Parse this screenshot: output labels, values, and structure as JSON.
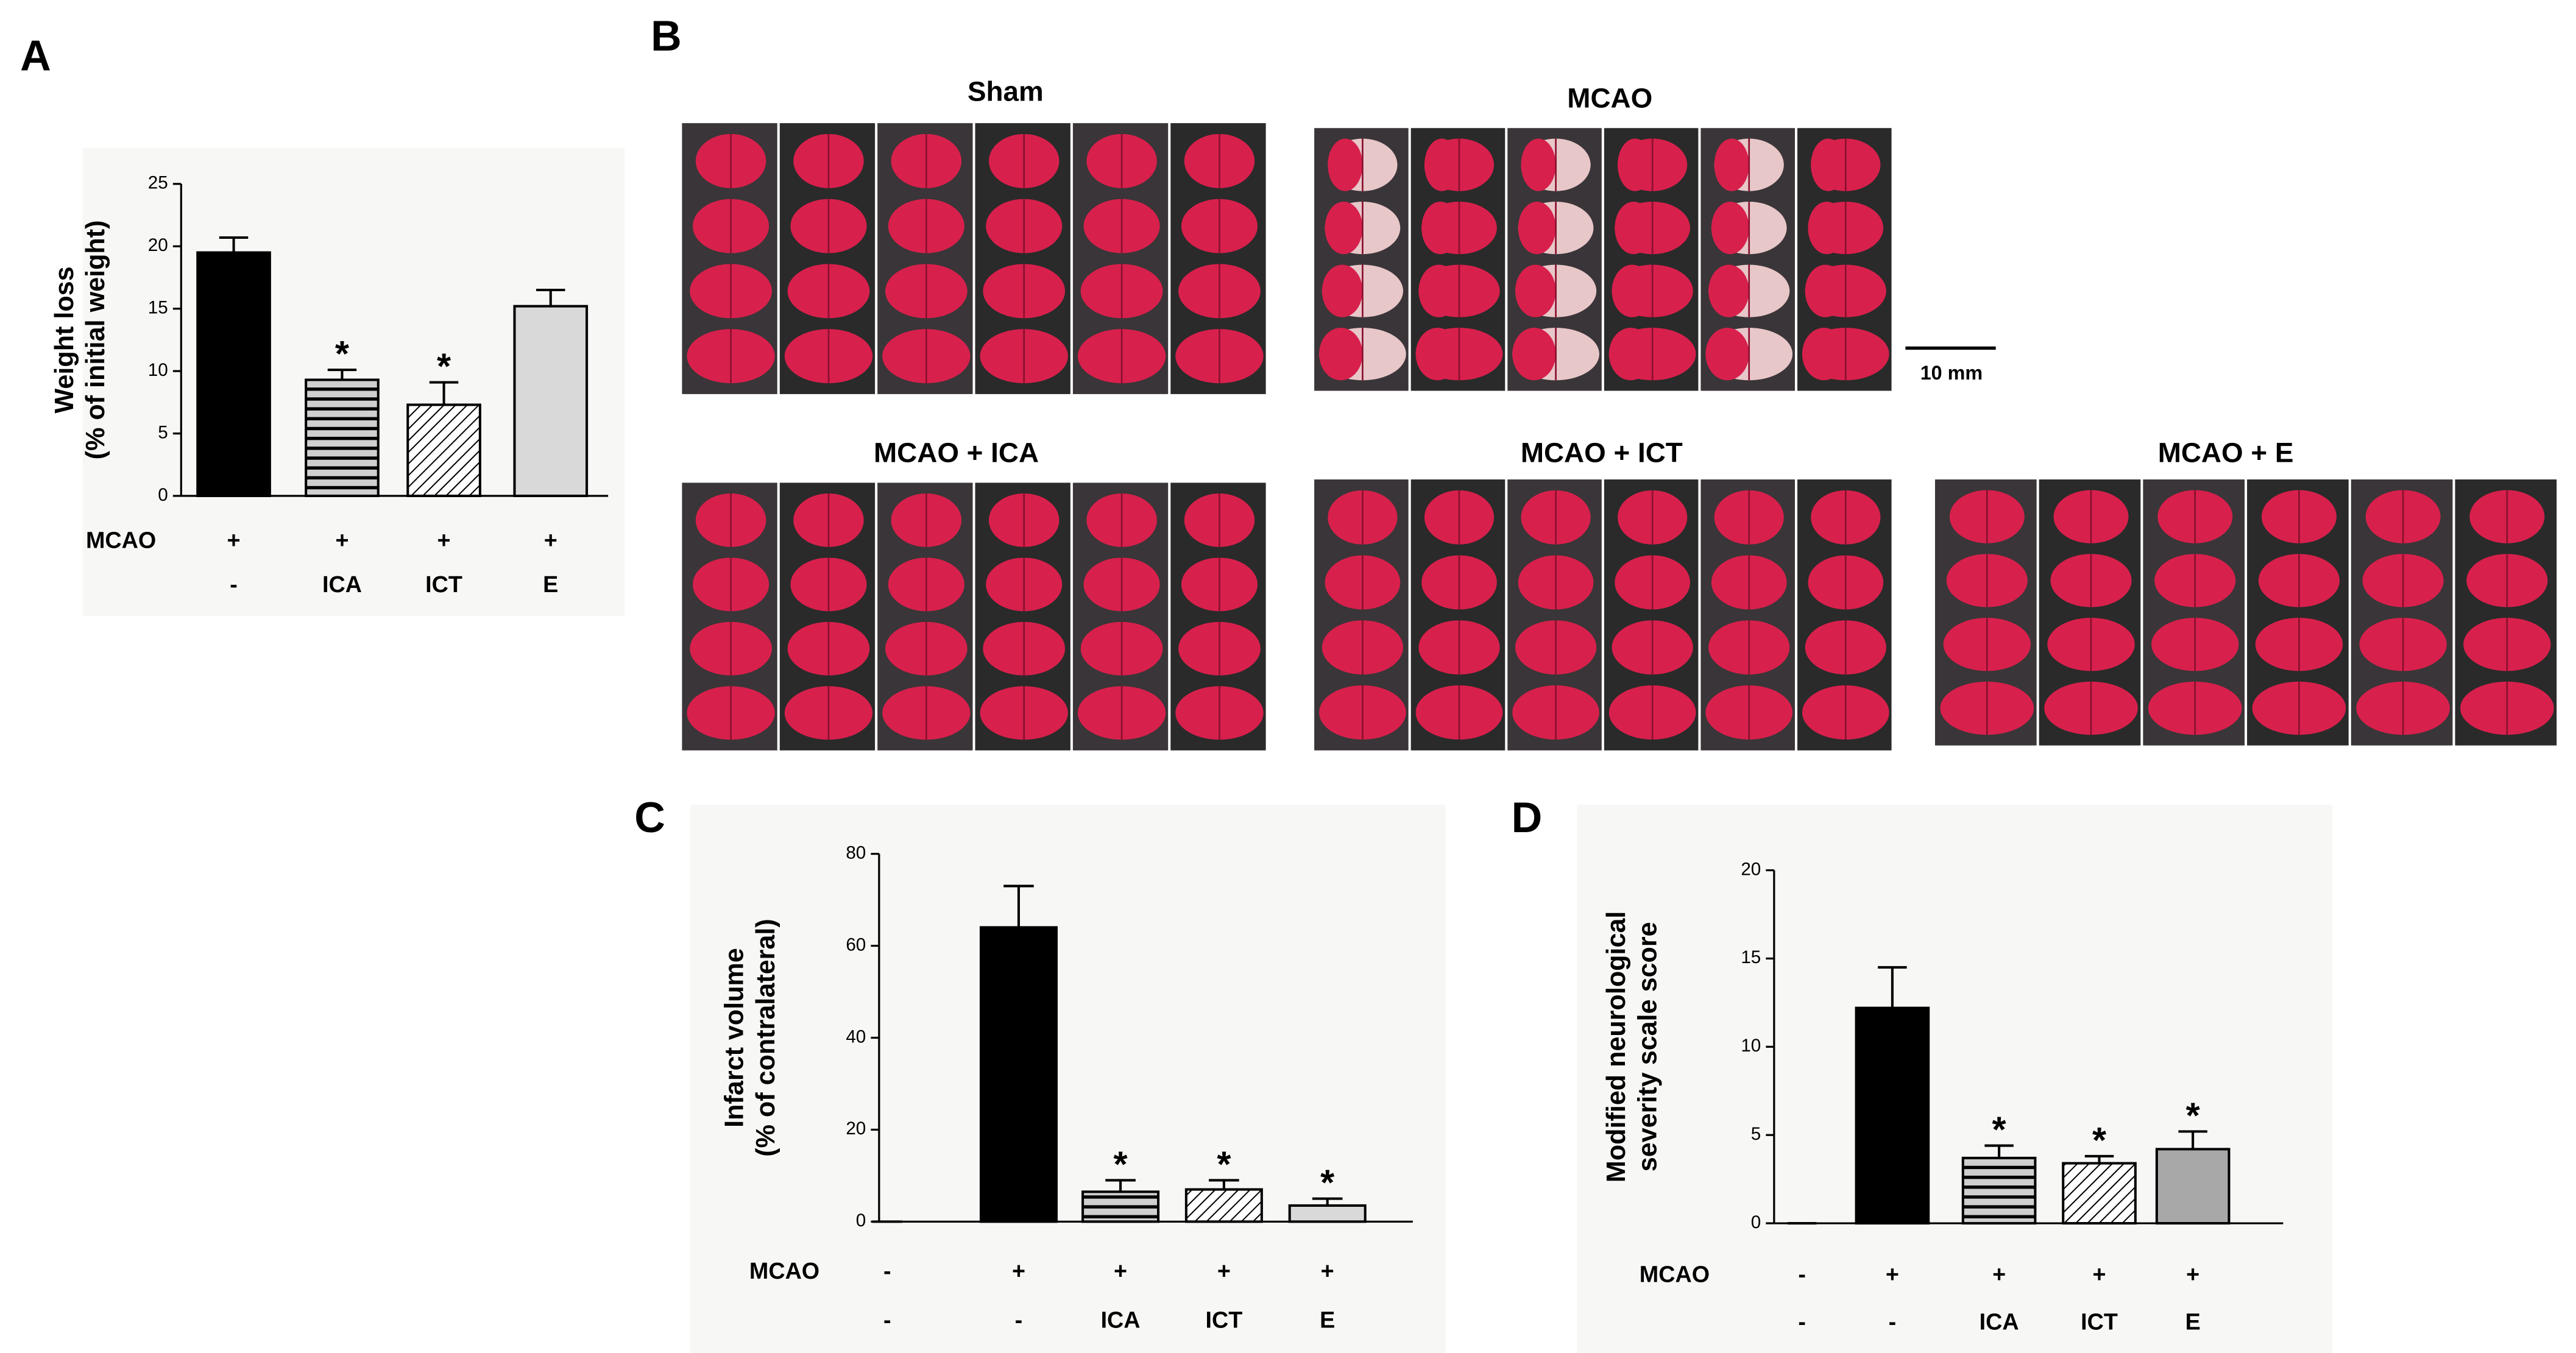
{
  "panel_labels": [
    "A",
    "B",
    "C",
    "D"
  ],
  "panel_b": {
    "groups": [
      "Sham",
      "MCAO",
      "MCAO + ICA",
      "MCAO + ICT",
      "MCAO + E"
    ],
    "scale_bar": "10 mm"
  },
  "chart_data": [
    {
      "type": "bar",
      "ylabel": [
        "Weight loss",
        "(% of initial weight)"
      ],
      "mcao_row": {
        "label": "MCAO",
        "values": [
          "+",
          "+",
          "+",
          "+"
        ]
      },
      "categories": [
        "-",
        "ICA",
        "ICT",
        "E"
      ],
      "values": [
        19.5,
        9.3,
        7.3,
        15.2
      ],
      "errors": [
        1.2,
        0.8,
        1.8,
        1.3
      ],
      "value_labels": [
        null,
        "*",
        "*",
        null
      ],
      "colors": [
        "#000000",
        "#cfcfcf",
        "#ffffff",
        "#d9d9d9"
      ],
      "patterns": [
        "solid",
        "horizontal",
        "diagonal",
        "solid"
      ],
      "ylim": [
        0,
        25
      ],
      "yticks": [
        0,
        5,
        10,
        15,
        20,
        25
      ]
    },
    {
      "type": "bar",
      "ylabel": [
        "Infarct volume",
        "(% of contralateral)"
      ],
      "mcao_row": {
        "label": "MCAO",
        "values": [
          "-",
          "+",
          "+",
          "+",
          "+"
        ]
      },
      "categories": [
        "-",
        "-",
        "ICA",
        "ICT",
        "E"
      ],
      "values": [
        0,
        64,
        6.5,
        7,
        3.5
      ],
      "errors": [
        0,
        9,
        2.5,
        2,
        1.5
      ],
      "value_labels": [
        null,
        null,
        "*",
        "*",
        "*"
      ],
      "colors": [
        "#000000",
        "#000000",
        "#cfcfcf",
        "#ffffff",
        "#d9d9d9"
      ],
      "patterns": [
        "solid",
        "solid",
        "horizontal",
        "diagonal",
        "solid"
      ],
      "ylim": [
        0,
        80
      ],
      "yticks": [
        0,
        20,
        40,
        60,
        80
      ]
    },
    {
      "type": "bar",
      "ylabel": [
        "Modified neurological",
        "severity scale score"
      ],
      "mcao_row": {
        "label": "MCAO",
        "values": [
          "-",
          "+",
          "+",
          "+",
          "+"
        ]
      },
      "categories": [
        "-",
        "-",
        "ICA",
        "ICT",
        "E"
      ],
      "values": [
        0,
        12.2,
        3.7,
        3.4,
        4.2
      ],
      "errors": [
        0,
        2.3,
        0.7,
        0.4,
        1.0
      ],
      "value_labels": [
        null,
        null,
        "*",
        "*",
        "*"
      ],
      "colors": [
        "#000000",
        "#000000",
        "#cfcfcf",
        "#ffffff",
        "#a8a8a8"
      ],
      "patterns": [
        "solid",
        "solid",
        "horizontal",
        "diagonal",
        "solid"
      ],
      "ylim": [
        0,
        20
      ],
      "yticks": [
        0,
        5,
        10,
        15,
        20
      ]
    }
  ]
}
